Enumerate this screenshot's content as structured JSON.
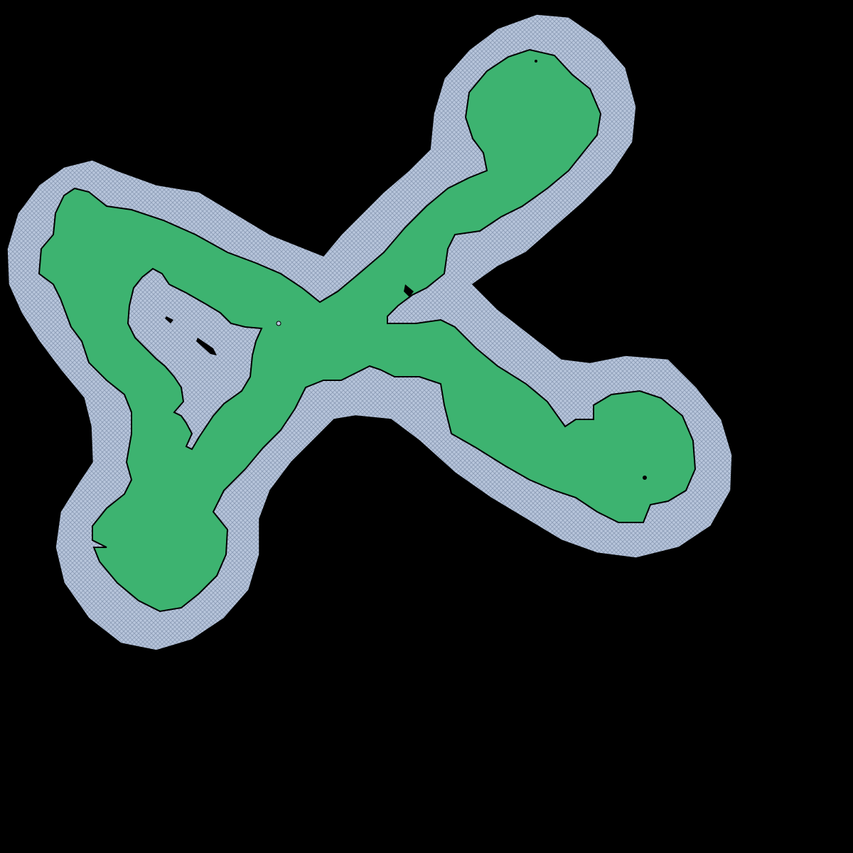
{
  "map": {
    "background_color": "#000000",
    "border_fill_color": "#b8c6dc",
    "border_hatch_color": "#8c9cb6",
    "region_fill_color": "#3db370",
    "region_outline_color": "#000000",
    "border_pattern": "crosshatch",
    "lobes": [
      "top-right-lobe",
      "left-lobe",
      "bottom-left-lobe",
      "right-lobe"
    ]
  }
}
